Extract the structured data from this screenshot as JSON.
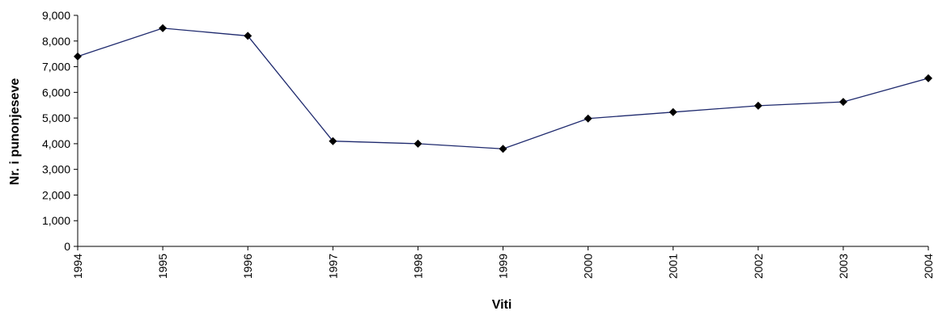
{
  "chart_data": {
    "type": "line",
    "title": "",
    "xlabel": "Viti",
    "ylabel": "Nr. i punonjeseve",
    "x": [
      "1994",
      "1995",
      "1996",
      "1997",
      "1998",
      "1999",
      "2000",
      "2001",
      "2002",
      "2003",
      "2004"
    ],
    "series": [
      {
        "values": [
          7400,
          8500,
          8200,
          4100,
          4000,
          3800,
          4980,
          5230,
          5480,
          5630,
          6550
        ],
        "color": "#1f2a6e",
        "marker": "diamond",
        "marker_color": "#000000"
      }
    ],
    "ylim": [
      0,
      9000
    ],
    "yticks": [
      0,
      1000,
      2000,
      3000,
      4000,
      5000,
      6000,
      7000,
      8000,
      9000
    ],
    "ytick_labels": [
      "0",
      "1,000",
      "2,000",
      "3,000",
      "4,000",
      "5,000",
      "6,000",
      "7,000",
      "8,000",
      "9,000"
    ],
    "grid": false,
    "legend": "none"
  }
}
